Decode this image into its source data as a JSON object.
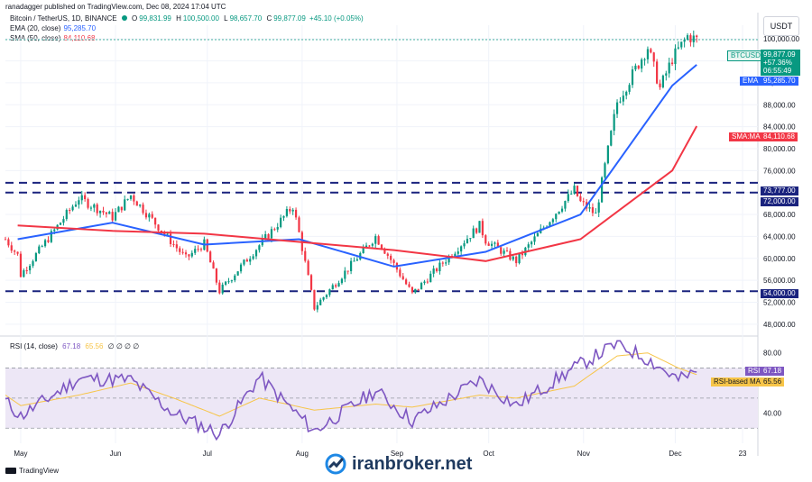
{
  "header": {
    "publisher_note": "ranadagger published on TradingView.com, Dec 08, 2024 17:04 UTC",
    "symbol": "Bitcoin / TetherUS, 1D, BINANCE",
    "ohlc": {
      "o_label": "O",
      "o": "99,831.99",
      "h_label": "H",
      "h": "100,500.00",
      "l_label": "L",
      "l": "98,657.70",
      "c_label": "C",
      "c": "99,877.09",
      "change": "+45.10 (+0.05%)"
    },
    "ema_label": "EMA (20, close)",
    "ema_value": "95,285.70",
    "sma_label": "SMA (50, close)",
    "sma_value": "84,110.68",
    "currency": "USDT"
  },
  "price_tags": {
    "symbol": "BTCUSDT",
    "last": "99,877.09",
    "pct": "+57.36%",
    "countdown": "06:55:49",
    "ema_name": "EMA",
    "ema": "95,285.70",
    "sma_name": "SMA:MA",
    "sma": "84,110.68",
    "level1": "73,777.00",
    "level2": "72,000.00",
    "level3": "54,000.00",
    "rsi_name": "RSI",
    "rsi": "67.18",
    "rsi_ma_name": "RSI-based MA",
    "rsi_ma": "65.56"
  },
  "rsi_panel": {
    "label": "RSI (14, close)",
    "v1": "67.18",
    "v2": "65.56",
    "rest": "∅ ∅ ∅ ∅"
  },
  "footer": {
    "brand": "TradingView",
    "watermark": "iranbroker.net"
  },
  "colors": {
    "up": "#089981",
    "down": "#f23645",
    "ema": "#2962ff",
    "sma": "#f23645",
    "rsi": "#7e57c2",
    "rsi_ma": "#f7c548",
    "level": "#1a237e"
  },
  "chart_data": {
    "type": "candlestick",
    "title": "Bitcoin / TetherUS, 1D, BINANCE",
    "y_ticks": [
      100000,
      96000,
      92000,
      88000,
      84000,
      80000,
      76000,
      72000,
      68000,
      64000,
      60000,
      56000,
      52000,
      48000
    ],
    "y_tick_labels": [
      "100,000.00",
      "96,000.00",
      "92,000.00",
      "88,000.00",
      "84,000.00",
      "80,000.00",
      "76,000.00",
      "72,000.00",
      "68,000.00",
      "64,000.00",
      "60,000.00",
      "56,000.00",
      "52,000.00",
      "48,000.00"
    ],
    "y_range": [
      46000,
      102500
    ],
    "x_ticks": [
      "May",
      "Jun",
      "Jul",
      "Aug",
      "Sep",
      "Oct",
      "Nov",
      "Dec",
      "23"
    ],
    "x_range": [
      "2024-04-26",
      "2024-12-28"
    ],
    "horizontal_levels": [
      73777,
      72000,
      54000
    ],
    "series": [
      {
        "name": "BTCUSDT",
        "type": "candle",
        "x": [
          "2024-04-30",
          "2024-05-31",
          "2024-06-30",
          "2024-07-31",
          "2024-08-31",
          "2024-09-30",
          "2024-10-31",
          "2024-11-30",
          "2024-12-08"
        ],
        "close": [
          60600,
          67500,
          62700,
          64600,
          58900,
          63300,
          70200,
          96400,
          99877
        ]
      },
      {
        "name": "EMA (20, close)",
        "type": "line",
        "x": [
          "2024-04-30",
          "2024-05-31",
          "2024-06-30",
          "2024-07-31",
          "2024-08-31",
          "2024-09-30",
          "2024-10-31",
          "2024-11-30",
          "2024-12-08"
        ],
        "values": [
          63500,
          66500,
          62500,
          63500,
          58500,
          61200,
          68000,
          91500,
          95285.7
        ]
      },
      {
        "name": "SMA (50, close)",
        "type": "line",
        "x": [
          "2024-04-30",
          "2024-05-31",
          "2024-06-30",
          "2024-07-31",
          "2024-08-31",
          "2024-09-30",
          "2024-10-31",
          "2024-11-30",
          "2024-12-08"
        ],
        "values": [
          66000,
          65000,
          64500,
          63000,
          61500,
          59500,
          63500,
          76000,
          84110.68
        ]
      }
    ],
    "rsi": {
      "label": "RSI (14, close)",
      "y_ticks": [
        80,
        40
      ],
      "bands": [
        70,
        50,
        30
      ],
      "y_range": [
        20,
        90
      ],
      "x": [
        "2024-04-26",
        "2024-05-01",
        "2024-05-20",
        "2024-06-06",
        "2024-06-20",
        "2024-07-05",
        "2024-07-18",
        "2024-08-05",
        "2024-08-25",
        "2024-09-06",
        "2024-09-28",
        "2024-10-10",
        "2024-10-29",
        "2024-11-12",
        "2024-11-22",
        "2024-12-02",
        "2024-12-08"
      ],
      "rsi": [
        48,
        38,
        63,
        62,
        40,
        26,
        64,
        28,
        55,
        35,
        62,
        45,
        70,
        86,
        76,
        62,
        67.18
      ],
      "rsi_ma": [
        52,
        45,
        52,
        60,
        50,
        38,
        50,
        42,
        46,
        44,
        52,
        50,
        58,
        78,
        80,
        70,
        65.56
      ]
    }
  }
}
